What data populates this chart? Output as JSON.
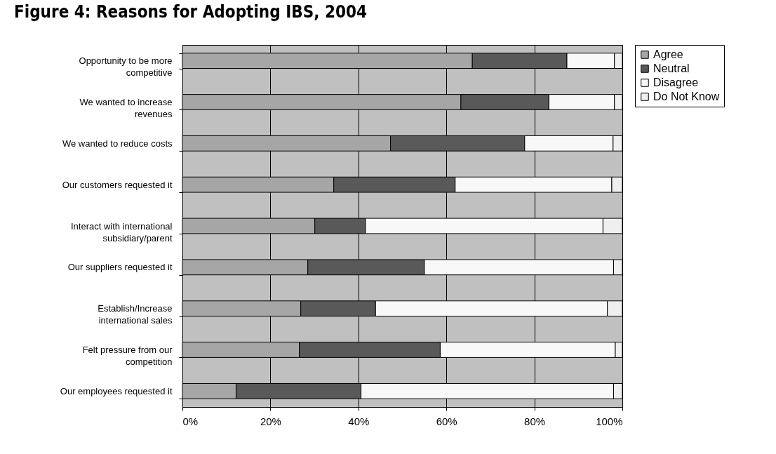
{
  "chart_data": {
    "type": "bar",
    "title": "Figure 4: Reasons for Adopting IBS, 2004",
    "orientation": "horizontal",
    "stacked": true,
    "categories": [
      "Opportunity to be more competitive",
      "We wanted to increase revenues",
      "We wanted to reduce costs",
      "Our customers requested it",
      "Interact with international subsidiary/parent",
      "Our suppliers requested it",
      "Establish/Increase international sales",
      "Felt pressure from our competition",
      "Our employees requested it"
    ],
    "series": [
      {
        "name": "Agree",
        "color": "#a6a6a6",
        "values": [
          65.9,
          63.3,
          47.3,
          34.4,
          30.1,
          28.5,
          26.9,
          26.6,
          12.2
        ]
      },
      {
        "name": "Neutral",
        "color": "#595959",
        "values": [
          21.5,
          20.0,
          30.5,
          27.6,
          11.5,
          26.5,
          17.0,
          32.0,
          28.4
        ]
      },
      {
        "name": "Disagree",
        "color": "#f8f8f8",
        "values": [
          10.8,
          14.9,
          20.1,
          35.6,
          54.0,
          43.0,
          52.7,
          39.8,
          57.4
        ]
      },
      {
        "name": "Do Not Know",
        "color": "#efefef",
        "values": [
          1.8,
          1.8,
          2.1,
          2.4,
          4.4,
          2.0,
          3.4,
          1.6,
          2.0
        ]
      }
    ],
    "xlim": [
      0,
      100
    ],
    "xticks": [
      {
        "value": 0,
        "label": "0%"
      },
      {
        "value": 20,
        "label": "20%"
      },
      {
        "value": 40,
        "label": "40%"
      },
      {
        "value": 60,
        "label": "60%"
      },
      {
        "value": 80,
        "label": "80%"
      },
      {
        "value": 100,
        "label": "100%"
      }
    ],
    "grid": "x",
    "legend": "right"
  }
}
